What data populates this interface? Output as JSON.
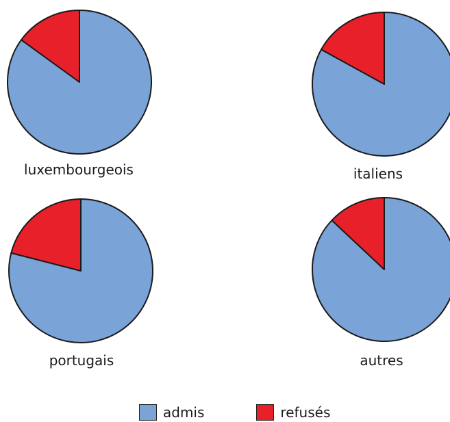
{
  "chart_data": {
    "type": "pie",
    "series_labels": [
      "admis",
      "refusés"
    ],
    "colors": {
      "admis": "#7aa3d8",
      "refusés": "#e8202a"
    },
    "legend_position": "bottom",
    "pies": [
      {
        "label": "luxembourgeois",
        "admis": 85,
        "refusés": 15
      },
      {
        "label": "italiens",
        "admis": 83,
        "refusés": 17
      },
      {
        "label": "portugais",
        "admis": 79,
        "refusés": 21
      },
      {
        "label": "autres",
        "admis": 87,
        "refusés": 13
      }
    ]
  }
}
